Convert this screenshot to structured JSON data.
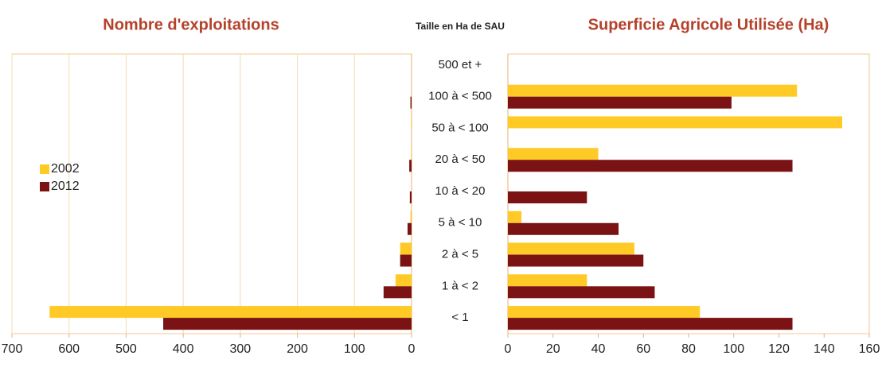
{
  "center_label": "Taille en Ha de SAU",
  "chart_data": [
    {
      "type": "bar",
      "orientation": "horizontal",
      "title": "Nombre d'exploitations",
      "x_reversed": true,
      "grid": true,
      "legend": "left",
      "xlim": [
        0,
        700
      ],
      "xticks": [
        0,
        100,
        200,
        300,
        400,
        500,
        600,
        700
      ],
      "series": [
        {
          "name": "2002",
          "color": "#ffc926",
          "values": [
            0,
            0,
            1,
            1,
            0,
            2,
            20,
            28,
            634
          ]
        },
        {
          "name": "2012",
          "color": "#7b1214",
          "values": [
            0,
            2,
            0,
            4,
            3,
            7,
            20,
            49,
            435
          ]
        }
      ]
    },
    {
      "type": "bar",
      "orientation": "horizontal",
      "title": "Superficie Agricole Utilisée (Ha)",
      "grid": false,
      "categories": [
        "500 et +",
        "100 à < 500",
        "50 à < 100",
        "20 à < 50",
        "10 à < 20",
        "5 à < 10",
        "2 à < 5",
        "1 à < 2",
        "< 1"
      ],
      "xlim": [
        0,
        160
      ],
      "xticks": [
        0,
        20,
        40,
        60,
        80,
        100,
        120,
        140,
        160
      ],
      "series": [
        {
          "color": "#ffc926",
          "values": [
            0,
            128,
            148,
            40,
            0,
            6,
            56,
            35,
            85
          ]
        },
        {
          "color": "#7b1214",
          "values": [
            0,
            99,
            0,
            126,
            35,
            49,
            60,
            65,
            126
          ]
        }
      ]
    }
  ]
}
